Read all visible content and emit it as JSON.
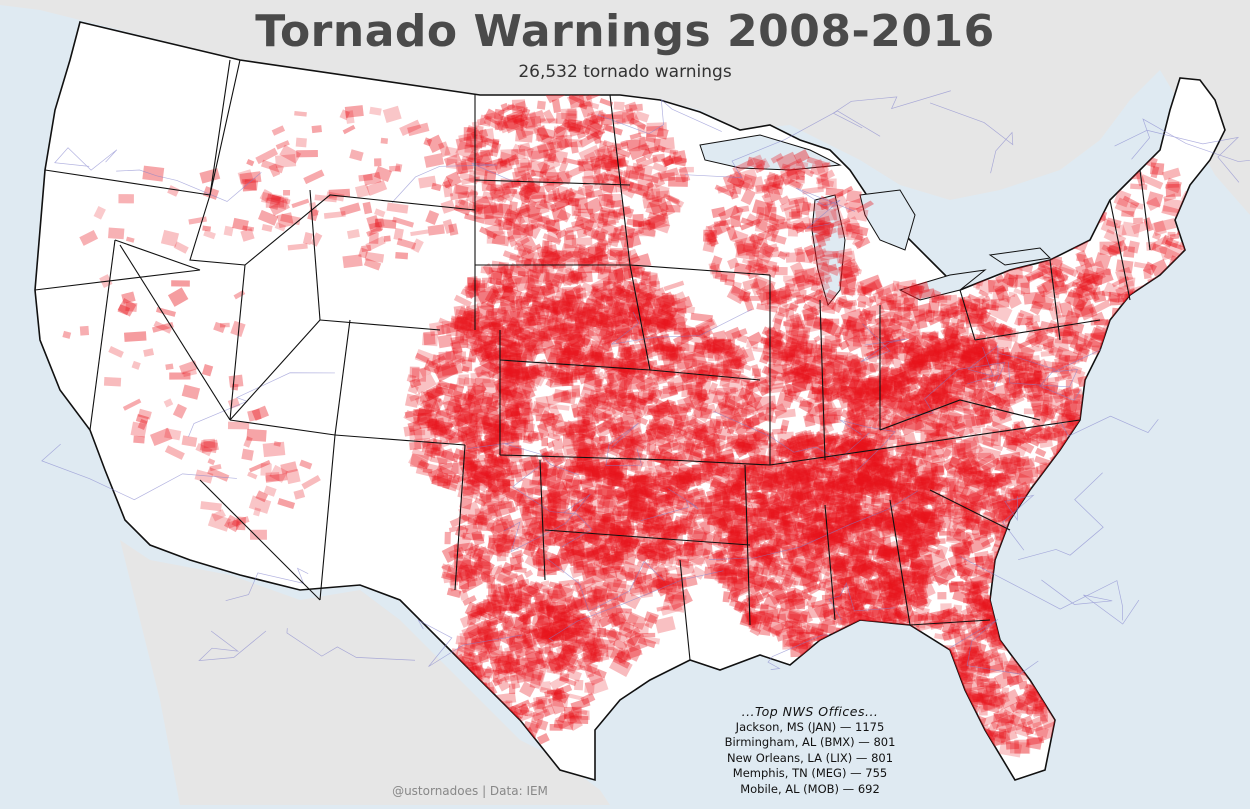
{
  "map": {
    "title": "Tornado Warnings 2008-2016",
    "subtitle": "26,532 tornado warnings",
    "colors": {
      "ocean": "#dfeaf2",
      "land_outside": "#e6e6e6",
      "land_us": "#ffffff",
      "warning": "#e8131b",
      "borders": "#111111",
      "roads": "#8080cc"
    },
    "top_offices": {
      "header": "...Top NWS Offices...",
      "items": [
        "Jackson, MS (JAN) — 1175",
        "Birmingham, AL (BMX) — 801",
        "New Orleans, LA (LIX) — 801",
        "Memphis, TN (MEG) — 755",
        "Mobile, AL (MOB) — 692"
      ]
    },
    "credit": "@ustornadoes | Data: IEM"
  }
}
